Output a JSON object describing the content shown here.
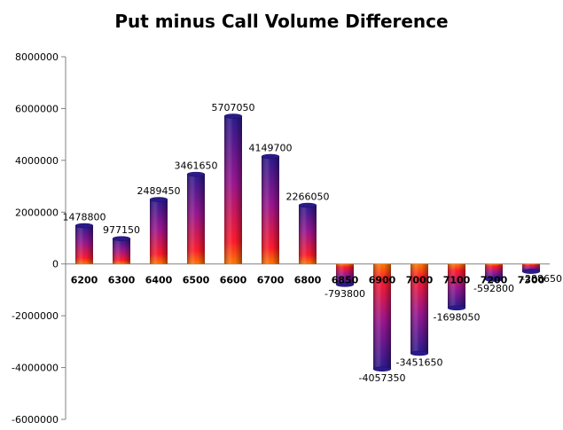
{
  "chart_data": {
    "type": "bar",
    "title": "Put minus Call Volume Difference",
    "xlabel": "",
    "ylabel": "",
    "categories": [
      "6200",
      "6300",
      "6400",
      "6500",
      "6600",
      "6700",
      "6800",
      "6850",
      "6900",
      "7000",
      "7100",
      "7200",
      "7300"
    ],
    "values": [
      1478800,
      977150,
      2489450,
      3461650,
      5707050,
      4149700,
      2266050,
      -793800,
      -4057350,
      -3451650,
      -1698050,
      -592800,
      -288650
    ],
    "data_labels": [
      "1478800",
      "977150",
      "2489450",
      "3461650",
      "5707050",
      "4149700",
      "2266050",
      "-793800",
      "-4057350",
      "-3451650",
      "-1698050",
      "-592800",
      "-288650"
    ],
    "ylim": [
      -6000000,
      8000000
    ],
    "yticks": [
      8000000,
      6000000,
      4000000,
      2000000,
      0,
      -2000000,
      -4000000,
      -6000000
    ],
    "ytick_labels": [
      "8000000",
      "6000000",
      "4000000",
      "2000000",
      "0",
      "-2000000",
      "-4000000",
      "-6000000"
    ],
    "grid": false,
    "legend": "none",
    "colors": {
      "bar_top": "#2b1a8f",
      "bar_mid": "#d0147a",
      "bar_base": "#ff2a10",
      "bar_edge": "#ff8a00"
    }
  }
}
